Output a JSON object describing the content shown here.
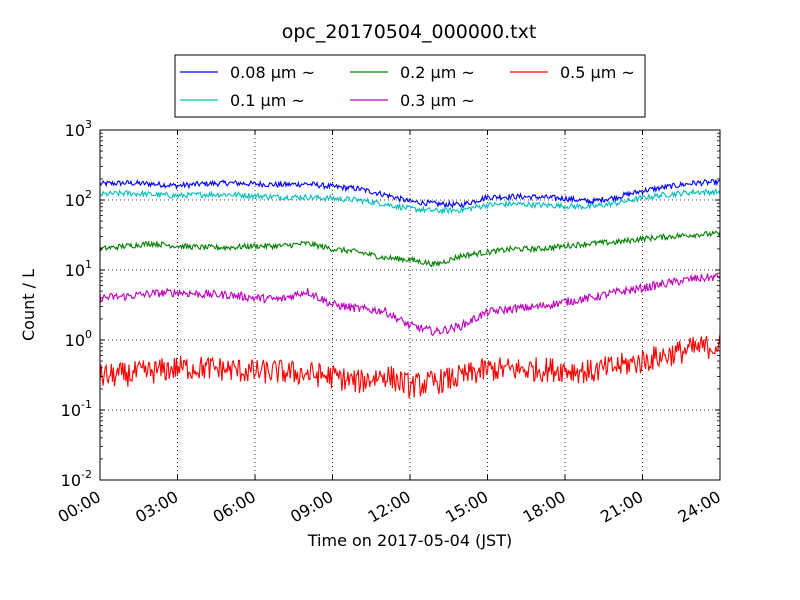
{
  "chart_data": {
    "type": "line",
    "title": "opc_20170504_000000.txt",
    "xlabel": "Time on 2017-05-04 (JST)",
    "ylabel": "Count / L",
    "x_ticks": [
      "00:00",
      "03:00",
      "06:00",
      "09:00",
      "12:00",
      "15:00",
      "18:00",
      "21:00",
      "24:00"
    ],
    "xlim_hours": [
      0,
      24
    ],
    "y_scale": "log",
    "ylim": [
      0.01,
      1000
    ],
    "y_ticks": [
      {
        "value": 0.01,
        "base": "10",
        "exp": "-2"
      },
      {
        "value": 0.1,
        "base": "10",
        "exp": "-1"
      },
      {
        "value": 1,
        "base": "10",
        "exp": "0"
      },
      {
        "value": 10,
        "base": "10",
        "exp": "1"
      },
      {
        "value": 100,
        "base": "10",
        "exp": "2"
      },
      {
        "value": 1000,
        "base": "10",
        "exp": "3"
      }
    ],
    "grid": true,
    "legend_position": "top-center (above plot)",
    "x_hours": [
      0,
      1,
      2,
      3,
      4,
      5,
      6,
      7,
      8,
      9,
      10,
      11,
      12,
      13,
      14,
      15,
      16,
      17,
      18,
      19,
      20,
      21,
      22,
      23,
      24
    ],
    "series": [
      {
        "name": "0.08 μm ~",
        "color": "#0000ff",
        "noise": 0.04,
        "values": [
          170,
          175,
          170,
          160,
          170,
          175,
          170,
          165,
          170,
          155,
          145,
          120,
          95,
          88,
          85,
          110,
          112,
          110,
          105,
          95,
          110,
          135,
          155,
          175,
          180
        ]
      },
      {
        "name": "0.1 μm ~",
        "color": "#00bfbf",
        "noise": 0.04,
        "values": [
          120,
          125,
          120,
          115,
          120,
          120,
          115,
          110,
          110,
          105,
          100,
          88,
          75,
          70,
          72,
          85,
          88,
          85,
          82,
          80,
          90,
          108,
          120,
          130,
          130
        ]
      },
      {
        "name": "0.2 μm ~",
        "color": "#008000",
        "noise": 0.04,
        "values": [
          20,
          22,
          24,
          22,
          21,
          21,
          22,
          22,
          24,
          20,
          18,
          15,
          14,
          12,
          16,
          18,
          20,
          20,
          22,
          24,
          25,
          28,
          30,
          32,
          33
        ]
      },
      {
        "name": "0.3 μm ~",
        "color": "#bf00bf",
        "noise": 0.06,
        "values": [
          4,
          4.2,
          4.6,
          4.8,
          4.5,
          4.4,
          4,
          3.8,
          5,
          3.2,
          2.8,
          2.6,
          1.6,
          1.3,
          1.6,
          2.5,
          2.8,
          3,
          3.5,
          4,
          4.8,
          5.5,
          6.5,
          7.5,
          8
        ]
      },
      {
        "name": "0.5 μm ~",
        "color": "#ff0000",
        "noise": 0.18,
        "values": [
          0.3,
          0.32,
          0.35,
          0.4,
          0.4,
          0.38,
          0.35,
          0.35,
          0.33,
          0.3,
          0.25,
          0.32,
          0.22,
          0.25,
          0.3,
          0.38,
          0.38,
          0.38,
          0.38,
          0.35,
          0.42,
          0.5,
          0.62,
          0.75,
          0.85
        ]
      }
    ]
  }
}
